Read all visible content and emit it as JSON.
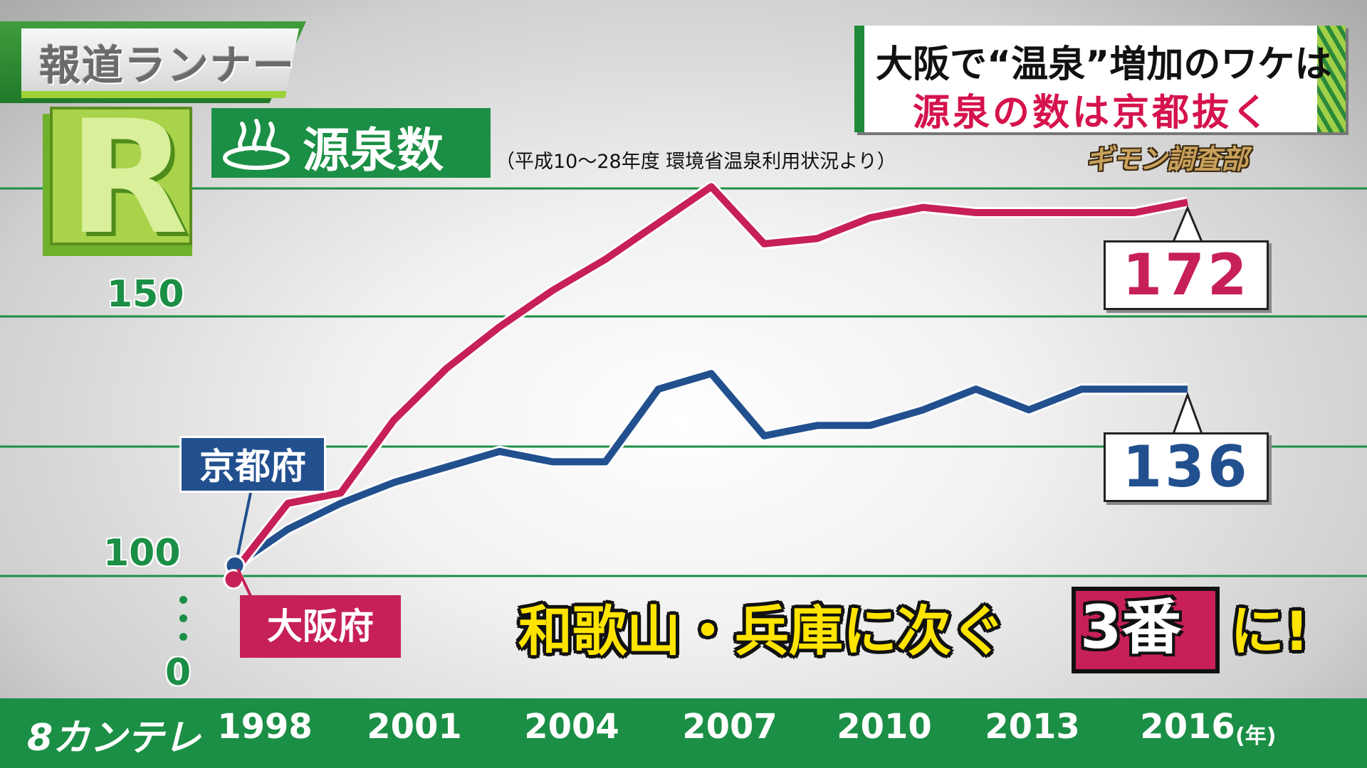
{
  "program": {
    "name": "報道ランナー",
    "logo_letter": "R"
  },
  "headline": {
    "line1": "大阪で“温泉”増加のワケは",
    "line2": "源泉の数は京都抜く"
  },
  "segment": {
    "name": "ギモン調査部"
  },
  "chart_title": "源泉数",
  "source_note": "（平成10～28年度 環境省温泉利用状況より）",
  "series_labels": {
    "kyoto": "京都府",
    "osaka": "大阪府"
  },
  "end_values": {
    "osaka": "172",
    "kyoto": "136"
  },
  "caption": {
    "part1": "和歌山・兵庫に次ぐ",
    "rank": "3番",
    "part2": "に!"
  },
  "channel": "8カンテレ",
  "x_unit": "(年)",
  "colors": {
    "osaka": "#c72057",
    "kyoto": "#22508f",
    "accent_green": "#1b8f45"
  },
  "chart_data": {
    "type": "line",
    "title": "源泉数",
    "xlabel": "(年)",
    "ylabel": "",
    "y_ticks": [
      "150",
      "100",
      "0"
    ],
    "x_ticks": [
      "1998",
      "2001",
      "2004",
      "2007",
      "2010",
      "2013",
      "2016"
    ],
    "axis_break": "0–100",
    "ylim": [
      100,
      190
    ],
    "grid": true,
    "x": [
      1998,
      1999,
      2000,
      2001,
      2002,
      2003,
      2004,
      2005,
      2006,
      2007,
      2008,
      2009,
      2010,
      2011,
      2012,
      2013,
      2014,
      2015,
      2016
    ],
    "series": [
      {
        "name": "大阪府",
        "values": [
          101,
          114,
          116,
          130,
          140,
          148,
          155,
          161,
          168,
          175,
          164,
          165,
          169,
          171,
          170,
          170,
          170,
          170,
          172
        ]
      },
      {
        "name": "京都府",
        "values": [
          102,
          109,
          114,
          118,
          121,
          124,
          122,
          122,
          136,
          139,
          127,
          129,
          129,
          132,
          136,
          132,
          136,
          136,
          136
        ]
      }
    ]
  }
}
